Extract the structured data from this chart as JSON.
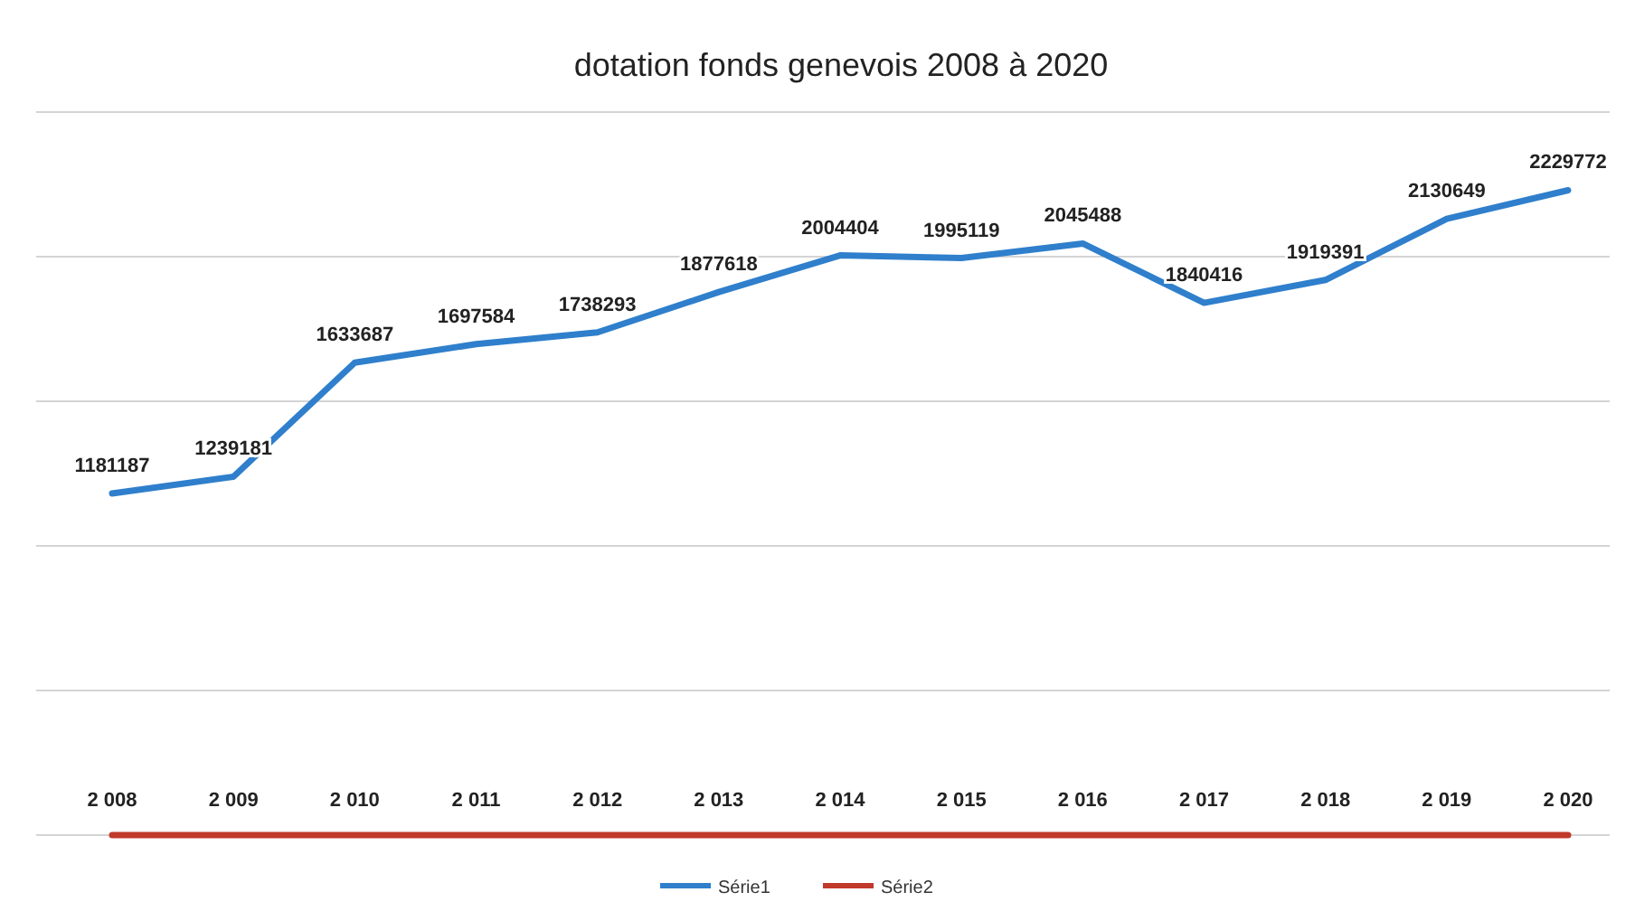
{
  "chart_data": {
    "type": "line",
    "title": "dotation fonds genevois 2008 à 2020",
    "categories": [
      "2 008",
      "2 009",
      "2 010",
      "2 011",
      "2 012",
      "2 013",
      "2 014",
      "2 015",
      "2 016",
      "2 017",
      "2 018",
      "2 019",
      "2 020"
    ],
    "series": [
      {
        "name": "Série1",
        "color": "#2f7fcc",
        "values": [
          1181187,
          1239181,
          1633687,
          1697584,
          1738293,
          1877618,
          2004404,
          1995119,
          2045488,
          1840416,
          1919391,
          2130649,
          2229772
        ],
        "value_labels": [
          "1181187",
          "1239181",
          "1633687",
          "1697584",
          "1738293",
          "1877618",
          "2004404",
          "1995119",
          "2045488",
          "1840416",
          "1919391",
          "2130649",
          "2229772"
        ]
      },
      {
        "name": "Série2",
        "color": "#c0392b",
        "values": [
          0,
          0,
          0,
          0,
          0,
          0,
          0,
          0,
          0,
          0,
          0,
          0,
          0
        ]
      }
    ],
    "ylim": [
      0,
      2500000
    ],
    "yticks": [
      {
        "value": 0,
        "label": null
      },
      {
        "value": 500000,
        "label": null
      },
      {
        "value": 1000000,
        "label": null
      },
      {
        "value": 1500000,
        "label": null
      },
      {
        "value": 2000000,
        "label": null
      },
      {
        "value": 2500000,
        "label": null
      }
    ],
    "tick_labels": "x",
    "grid": "y",
    "legend": "bottom",
    "marker": "none",
    "line_style": "solid"
  }
}
